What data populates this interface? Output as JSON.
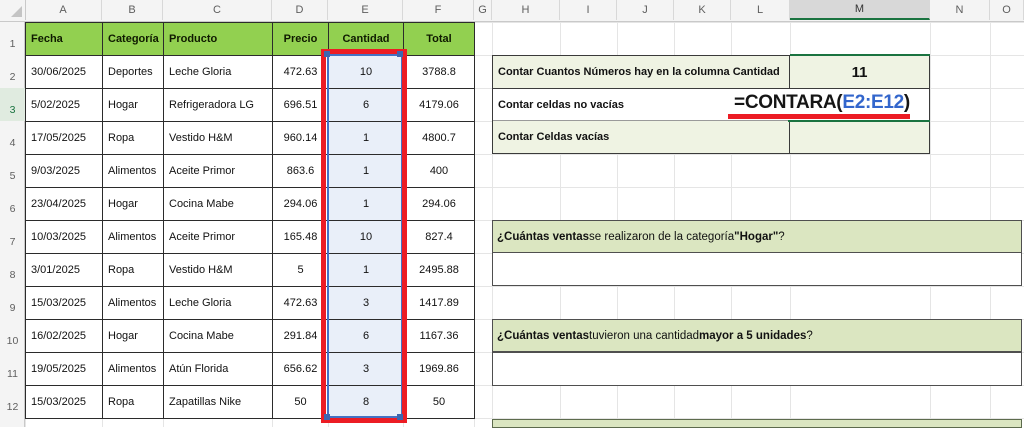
{
  "spreadsheet": {
    "column_letters": [
      "A",
      "B",
      "C",
      "D",
      "E",
      "F",
      "G",
      "H",
      "I",
      "J",
      "K",
      "L",
      "M",
      "N",
      "O"
    ],
    "row_numbers": [
      "1",
      "2",
      "3",
      "4",
      "5",
      "6",
      "7",
      "8",
      "9",
      "10",
      "11",
      "12"
    ],
    "selected_column": "M",
    "selected_row": "3"
  },
  "table": {
    "headers": [
      "Fecha",
      "Categoría",
      "Producto",
      "Precio",
      "Cantidad",
      "Total"
    ],
    "rows": [
      [
        "30/06/2025",
        "Deportes",
        "Leche Gloria",
        "472.63",
        "10",
        "3788.8"
      ],
      [
        "5/02/2025",
        "Hogar",
        "Refrigeradora LG",
        "696.51",
        "6",
        "4179.06"
      ],
      [
        "17/05/2025",
        "Ropa",
        "Vestido H&M",
        "960.14",
        "1",
        "4800.7"
      ],
      [
        "9/03/2025",
        "Alimentos",
        "Aceite Primor",
        "863.6",
        "1",
        "400"
      ],
      [
        "23/04/2025",
        "Hogar",
        "Cocina Mabe",
        "294.06",
        "1",
        "294.06"
      ],
      [
        "10/03/2025",
        "Alimentos",
        "Aceite Primor",
        "165.48",
        "10",
        "827.4"
      ],
      [
        "3/01/2025",
        "Ropa",
        "Vestido H&M",
        "5",
        "1",
        "2495.88"
      ],
      [
        "15/03/2025",
        "Alimentos",
        "Leche Gloria",
        "472.63",
        "3",
        "1417.89"
      ],
      [
        "16/02/2025",
        "Hogar",
        "Cocina Mabe",
        "291.84",
        "6",
        "1167.36"
      ],
      [
        "19/05/2025",
        "Alimentos",
        "Atún Florida",
        "656.62",
        "3",
        "1969.86"
      ],
      [
        "15/03/2025",
        "Ropa",
        "Zapatillas Nike",
        "50",
        "8",
        "50"
      ]
    ]
  },
  "panel": {
    "count_numbers": {
      "label": "Contar Cuantos Números hay en la columna Cantidad",
      "value": "11"
    },
    "count_nonempty": {
      "label": "Contar celdas no vacías",
      "formula_prefix": "=CONTARA(",
      "formula_range": "E2:E12",
      "formula_suffix": ")"
    },
    "count_empty": {
      "label": "Contar Celdas vacías",
      "value": ""
    },
    "question1": {
      "bold1": "¿Cuántas ventas",
      "text1": " se realizaron de la categoría ",
      "bold2": "\"Hogar\"",
      "text2": "?"
    },
    "question2": {
      "bold1": "¿Cuántas ventas",
      "text1": " tuvieron una cantidad ",
      "bold2": "mayor a 5 unidades",
      "text2": "?"
    }
  },
  "colors": {
    "table_header_green": "#92D050",
    "label_cell_green": "#EFF3E3",
    "question_banner_green": "#DBE6C1",
    "selection_fill_blue": "#E9EFF9",
    "selection_border_blue": "#4472C4",
    "annotation_red": "#EC1C24",
    "formula_range_blue": "#3366CC",
    "selected_header_green": "#1A7340"
  }
}
